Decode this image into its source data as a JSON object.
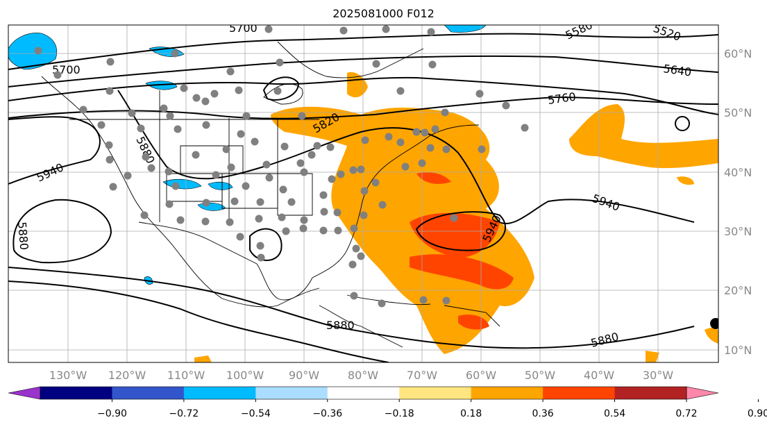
{
  "title": "2025081000 F012",
  "longitude_labels": [
    "130°W",
    "120°W",
    "110°W",
    "100°W",
    "90°W",
    "80°W",
    "70°W",
    "60°W",
    "50°W",
    "40°W",
    "30°W"
  ],
  "latitude_labels": [
    "60°N",
    "50°N",
    "40°N",
    "30°N",
    "20°N",
    "10°N"
  ],
  "contour_labels": [
    "5520",
    "5580",
    "5640",
    "5700",
    "5760",
    "5820",
    "5880",
    "5880",
    "5880",
    "5940",
    "5940",
    "5940",
    "5880",
    "5700"
  ],
  "colorbar": {
    "ticks": [
      "−0.90",
      "−0.72",
      "−0.54",
      "−0.36",
      "−0.18",
      "0.18",
      "0.36",
      "0.54",
      "0.72",
      "0.90"
    ],
    "colors": [
      "#9933cc",
      "#000080",
      "#3355cc",
      "#00bbff",
      "#aaddff",
      "#ffffff",
      "#ffe680",
      "#ffa500",
      "#ff4400",
      "#b22222",
      "#ff88aa"
    ]
  }
}
